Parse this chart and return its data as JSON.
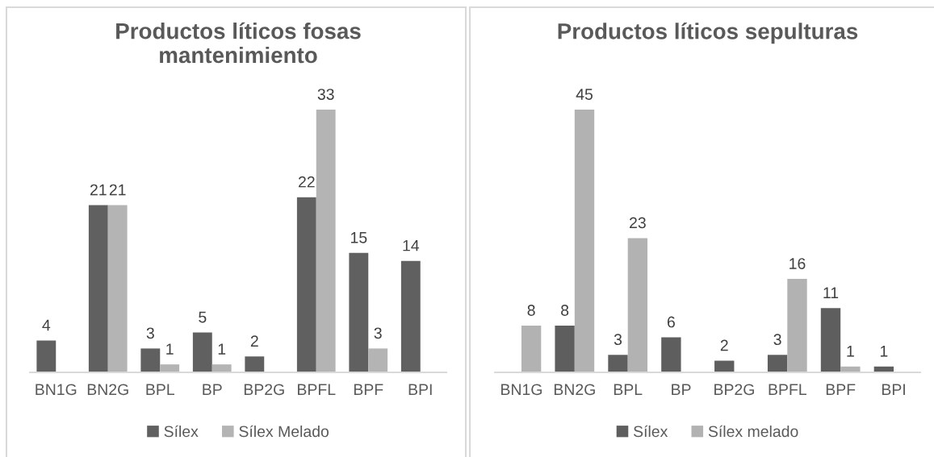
{
  "chart_data": [
    {
      "type": "bar",
      "title": "Productos líticos fosas\nmantenimiento",
      "categories": [
        "BN1G",
        "BN2G",
        "BPL",
        "BP",
        "BP2G",
        "BPFL",
        "BPF",
        "BPI"
      ],
      "series": [
        {
          "name": "Sílex",
          "color": "#606060",
          "values": [
            4,
            21,
            3,
            5,
            2,
            22,
            15,
            14
          ]
        },
        {
          "name": "Sílex Melado",
          "color": "#b4b4b4",
          "values": [
            null,
            21,
            1,
            1,
            null,
            33,
            3,
            null
          ]
        }
      ],
      "data_labels": true,
      "legend": "bottom",
      "tick_labels": "x"
    },
    {
      "type": "bar",
      "title": "Productos líticos sepulturas",
      "categories": [
        "BN1G",
        "BN2G",
        "BPL",
        "BP",
        "BP2G",
        "BPFL",
        "BPF",
        "BPI"
      ],
      "series": [
        {
          "name": "Sílex",
          "color": "#5e5e5e",
          "values": [
            null,
            8,
            3,
            6,
            2,
            3,
            11,
            1
          ]
        },
        {
          "name": "Sílex melado",
          "color": "#b2b2b2",
          "values": [
            8,
            45,
            23,
            null,
            null,
            16,
            1,
            null
          ]
        }
      ],
      "data_labels": true,
      "legend": "bottom",
      "tick_labels": "x"
    }
  ]
}
